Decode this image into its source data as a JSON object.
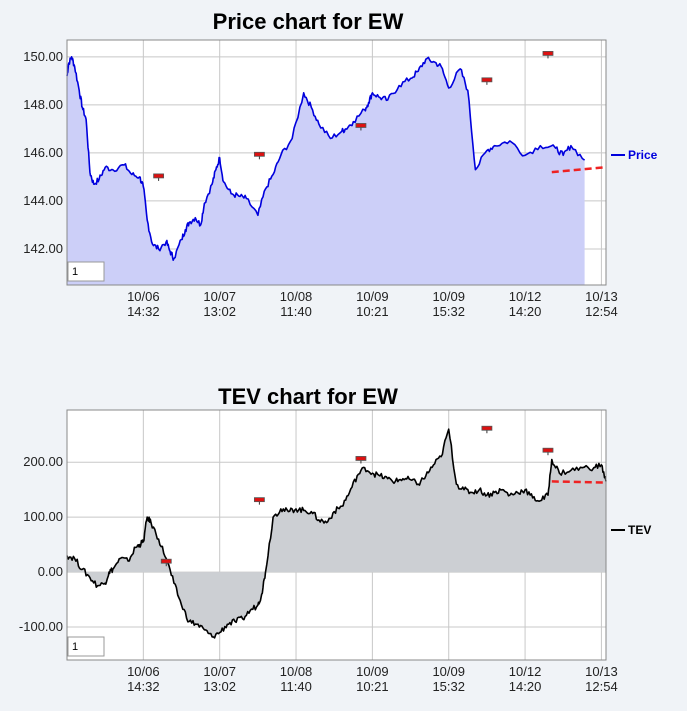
{
  "chart_data": [
    {
      "type": "line",
      "title": "Price chart for EW",
      "legend": {
        "label": "Price",
        "placement": "right"
      },
      "line_color": "#0000dd",
      "fill_color": "#cccff8",
      "ylim": [
        140.5,
        150.7
      ],
      "y_ticks": [
        "142.00",
        "144.00",
        "146.00",
        "148.00",
        "150.00"
      ],
      "y_tick_values": [
        142,
        144,
        146,
        148,
        150
      ],
      "x_ticks": [
        {
          "date": "10/06",
          "time": "14:32"
        },
        {
          "date": "10/07",
          "time": "13:02"
        },
        {
          "date": "10/08",
          "time": "11:40"
        },
        {
          "date": "10/09",
          "time": "10:21"
        },
        {
          "date": "10/09",
          "time": "15:32"
        },
        {
          "date": "10/12",
          "time": "14:20"
        },
        {
          "date": "10/13",
          "time": "12:54"
        }
      ],
      "input_value": "1",
      "series": [
        {
          "x": [
            0,
            0.02,
            0.06,
            0.1,
            0.16,
            0.2,
            0.25,
            0.3,
            0.35,
            0.42,
            0.5,
            0.6,
            0.75,
            0.85,
            0.95,
            1.0,
            1.05,
            1.12,
            1.2,
            1.3,
            1.35,
            1.4,
            1.5,
            1.55,
            1.6,
            1.68,
            1.75,
            1.8,
            1.9,
            1.95,
            2.0,
            2.05,
            2.15,
            2.25,
            2.35,
            2.5,
            2.6,
            2.7,
            2.8,
            2.95,
            3.1,
            3.2,
            3.3,
            3.45,
            3.6,
            3.65,
            3.75,
            3.9,
            3.95,
            4.0,
            4.1,
            4.2,
            4.35,
            4.5,
            4.6,
            4.7,
            4.8,
            4.9,
            5.0,
            5.15,
            5.25,
            5.35,
            5.5,
            5.6,
            5.8,
            6.0,
            6.2,
            6.4,
            6.5,
            6.6,
            6.78
          ],
          "y": [
            149.2,
            149.7,
            150.0,
            149.6,
            148.6,
            147.9,
            147.4,
            145.2,
            144.7,
            144.9,
            145.4,
            145.3,
            145.5,
            145.1,
            145.0,
            144.6,
            143.2,
            142.2,
            142.0,
            142.3,
            141.9,
            141.6,
            142.4,
            142.8,
            143.1,
            143.3,
            143.0,
            143.9,
            144.7,
            145.3,
            145.8,
            144.8,
            144.3,
            144.2,
            144.1,
            143.4,
            144.5,
            145.1,
            145.9,
            146.6,
            148.5,
            147.9,
            147.2,
            146.6,
            146.9,
            147.0,
            147.3,
            147.8,
            148.1,
            148.5,
            148.3,
            148.2,
            148.8,
            149.1,
            149.4,
            149.9,
            149.8,
            149.6,
            148.7,
            149.5,
            148.6,
            145.3,
            146.1,
            146.3,
            146.5,
            145.9,
            146.3,
            146.2,
            145.9,
            146.3,
            145.7
          ]
        }
      ],
      "markers": [
        {
          "x": 1.2,
          "y": 145.0
        },
        {
          "x": 2.52,
          "y": 145.9
        },
        {
          "x": 3.85,
          "y": 147.1
        },
        {
          "x": 5.5,
          "y": 149.0
        },
        {
          "x": 6.3,
          "y": 150.1
        }
      ],
      "trendline": {
        "x": [
          6.35,
          7.05
        ],
        "y": [
          145.2,
          145.4
        ],
        "color": "#ee2222"
      }
    },
    {
      "type": "line",
      "title": "TEV chart for EW",
      "legend": {
        "label": "TEV",
        "placement": "right"
      },
      "line_color": "#000000",
      "fill_color": "#cccfd3",
      "ylim": [
        -160,
        295
      ],
      "y_ticks": [
        "-100.00",
        "0.00",
        "100.00",
        "200.00"
      ],
      "y_tick_values": [
        -100,
        0,
        100,
        200
      ],
      "x_ticks": [
        {
          "date": "10/06",
          "time": "14:32"
        },
        {
          "date": "10/07",
          "time": "13:02"
        },
        {
          "date": "10/08",
          "time": "11:40"
        },
        {
          "date": "10/09",
          "time": "10:21"
        },
        {
          "date": "10/09",
          "time": "15:32"
        },
        {
          "date": "10/12",
          "time": "14:20"
        },
        {
          "date": "10/13",
          "time": "12:54"
        }
      ],
      "input_value": "1",
      "series": [
        {
          "x": [
            0,
            0.1,
            0.2,
            0.3,
            0.4,
            0.5,
            0.55,
            0.6,
            0.7,
            0.8,
            0.9,
            0.95,
            1.0,
            1.05,
            1.1,
            1.2,
            1.3,
            1.4,
            1.5,
            1.6,
            1.7,
            1.8,
            1.9,
            2.0,
            2.1,
            2.2,
            2.3,
            2.4,
            2.5,
            2.55,
            2.6,
            2.7,
            2.8,
            2.9,
            3.0,
            3.1,
            3.2,
            3.3,
            3.4,
            3.5,
            3.6,
            3.7,
            3.8,
            3.9,
            4.0,
            4.1,
            4.2,
            4.3,
            4.4,
            4.5,
            4.6,
            4.7,
            4.8,
            4.9,
            5.0,
            5.1,
            5.2,
            5.3,
            5.4,
            5.5,
            5.6,
            5.7,
            5.8,
            5.9,
            6.0,
            6.1,
            6.2,
            6.3,
            6.35,
            6.45,
            6.6,
            6.75,
            6.9,
            7.0,
            7.06
          ],
          "y": [
            30,
            25,
            5,
            -10,
            -25,
            -20,
            0,
            5,
            25,
            20,
            45,
            50,
            55,
            100,
            90,
            60,
            25,
            -20,
            -60,
            -90,
            -95,
            -105,
            -118,
            -110,
            -95,
            -90,
            -85,
            -70,
            -60,
            -40,
            0,
            100,
            115,
            110,
            115,
            112,
            110,
            95,
            90,
            110,
            120,
            145,
            175,
            190,
            180,
            175,
            170,
            165,
            170,
            168,
            160,
            175,
            195,
            210,
            260,
            160,
            150,
            145,
            150,
            140,
            145,
            150,
            140,
            145,
            150,
            135,
            130,
            140,
            205,
            180,
            185,
            190,
            190,
            195,
            165
          ]
        }
      ],
      "markers": [
        {
          "x": 1.3,
          "y": 18
        },
        {
          "x": 2.52,
          "y": 130
        },
        {
          "x": 3.85,
          "y": 205
        },
        {
          "x": 5.5,
          "y": 260
        },
        {
          "x": 6.3,
          "y": 220
        }
      ],
      "trendline": {
        "x": [
          6.35,
          7.05
        ],
        "y": [
          165,
          163
        ],
        "color": "#ee2222"
      }
    }
  ]
}
